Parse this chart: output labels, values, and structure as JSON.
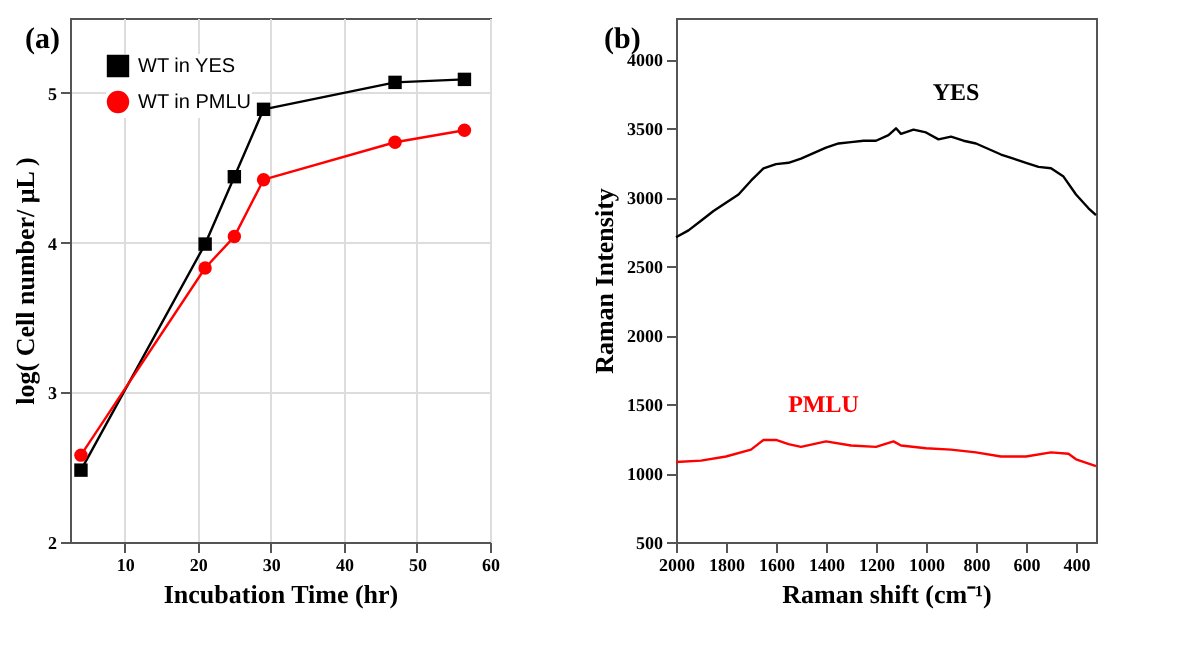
{
  "chart_data": [
    {
      "type": "line",
      "title": "(a)",
      "xlabel": "Incubation Time (hr)",
      "ylabel": "log( Cell number/ μL )",
      "x": [
        4,
        21,
        25,
        29,
        47,
        56.5
      ],
      "xlim": [
        2.5,
        60
      ],
      "xticks": [
        10,
        20,
        30,
        40,
        50,
        60
      ],
      "ylim": [
        2,
        5.5
      ],
      "yticks": [
        2,
        3,
        4,
        5
      ],
      "grid": true,
      "legend": "top left",
      "series": [
        {
          "name": "WT in YES",
          "color": "#000000",
          "marker": "square",
          "values": [
            2.48,
            3.99,
            4.44,
            4.89,
            5.07,
            5.09
          ]
        },
        {
          "name": "WT in PMLU",
          "color": "#ff0000",
          "marker": "circle",
          "values": [
            2.58,
            3.83,
            4.04,
            4.42,
            4.67,
            4.75
          ]
        }
      ]
    },
    {
      "type": "line",
      "title": "(b)",
      "xlabel": "Raman shift (cm⁻¹)",
      "ylabel": "Raman Intensity",
      "xlim": [
        2000,
        320
      ],
      "xticks": [
        2000,
        1800,
        1600,
        1400,
        1200,
        1000,
        800,
        600,
        400
      ],
      "ylim": [
        500,
        4300
      ],
      "yticks": [
        500,
        1000,
        1500,
        2000,
        2500,
        3000,
        3500,
        4000
      ],
      "grid": false,
      "legend": false,
      "marker": "none",
      "series": [
        {
          "name": "YES",
          "color": "#000000",
          "x": [
            2000,
            1950,
            1900,
            1850,
            1800,
            1750,
            1700,
            1650,
            1600,
            1550,
            1500,
            1450,
            1400,
            1350,
            1300,
            1250,
            1200,
            1150,
            1120,
            1100,
            1050,
            1000,
            950,
            900,
            850,
            800,
            750,
            700,
            650,
            600,
            550,
            500,
            450,
            400,
            350,
            320
          ],
          "values": [
            2710,
            2760,
            2830,
            2900,
            2960,
            3020,
            3120,
            3210,
            3240,
            3250,
            3280,
            3320,
            3360,
            3390,
            3400,
            3410,
            3410,
            3450,
            3500,
            3460,
            3490,
            3470,
            3420,
            3440,
            3410,
            3390,
            3350,
            3310,
            3280,
            3250,
            3220,
            3210,
            3150,
            3020,
            2920,
            2870
          ]
        },
        {
          "name": "PMLU",
          "color": "#ff0000",
          "x": [
            2000,
            1900,
            1800,
            1700,
            1650,
            1600,
            1550,
            1500,
            1450,
            1400,
            1300,
            1200,
            1130,
            1100,
            1000,
            900,
            800,
            700,
            600,
            500,
            430,
            400,
            320
          ],
          "values": [
            1080,
            1090,
            1120,
            1170,
            1240,
            1240,
            1210,
            1190,
            1210,
            1230,
            1200,
            1190,
            1230,
            1200,
            1180,
            1170,
            1150,
            1120,
            1120,
            1150,
            1140,
            1100,
            1050
          ]
        }
      ]
    }
  ]
}
